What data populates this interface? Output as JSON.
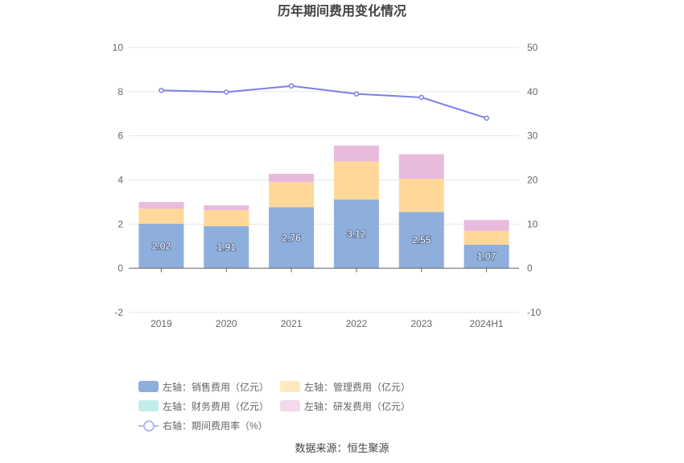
{
  "chart_data": {
    "type": "bar",
    "title": "历年期间费用变化情况",
    "categories": [
      "2019",
      "2020",
      "2021",
      "2022",
      "2023",
      "2024H1"
    ],
    "stacked": true,
    "left_axis": {
      "min": -2,
      "max": 10,
      "ticks": [
        "-2",
        "0",
        "2",
        "4",
        "6",
        "8",
        "10"
      ]
    },
    "right_axis": {
      "min": -10,
      "max": 50,
      "ticks": [
        "-10",
        "0",
        "10",
        "20",
        "30",
        "40",
        "50"
      ]
    },
    "series": [
      {
        "name": "左轴：销售费用（亿元）",
        "type": "bar",
        "axis": "left",
        "color": "#8eaedc",
        "values": [
          2.02,
          1.91,
          2.76,
          3.12,
          2.55,
          1.07
        ],
        "labels": [
          "2.02",
          "1.91",
          "2.76",
          "3.12",
          "2.55",
          "1.07"
        ]
      },
      {
        "name": "左轴：管理费用（亿元）",
        "type": "bar",
        "axis": "left",
        "color": "#ffd899",
        "values": [
          0.68,
          0.72,
          1.15,
          1.72,
          1.5,
          0.62
        ]
      },
      {
        "name": "左轴：财务费用（亿元）",
        "type": "bar",
        "axis": "left",
        "color": "#b6e7ec",
        "values": [
          0.0,
          0.0,
          0.0,
          0.0,
          0.0,
          0.0
        ]
      },
      {
        "name": "左轴：研发费用（亿元）",
        "type": "bar",
        "axis": "left",
        "color": "#e8bbdc",
        "values": [
          0.3,
          0.22,
          0.37,
          0.72,
          1.12,
          0.5
        ]
      },
      {
        "name": "右轴：期间费用率（%）",
        "type": "line",
        "axis": "right",
        "color": "#7b7fe8",
        "values": [
          40.3,
          39.9,
          41.3,
          39.5,
          38.7,
          34.0
        ]
      }
    ],
    "grid": true,
    "legend_position": "bottom"
  },
  "legend": {
    "items": [
      {
        "label": "左轴：销售费用（亿元）",
        "color": "#8eaedc",
        "kind": "bar"
      },
      {
        "label": "左轴：管理费用（亿元）",
        "color": "#ffe9bf",
        "kind": "bar"
      },
      {
        "label": "左轴：财务费用（亿元）",
        "color": "#c2ecec",
        "kind": "bar"
      },
      {
        "label": "左轴：研发费用（亿元）",
        "color": "#f3d9ec",
        "kind": "bar"
      },
      {
        "label": "右轴：期间费用率（%）",
        "color": "#b3b8f2",
        "kind": "line"
      }
    ]
  },
  "source": "数据来源：恒生聚源"
}
